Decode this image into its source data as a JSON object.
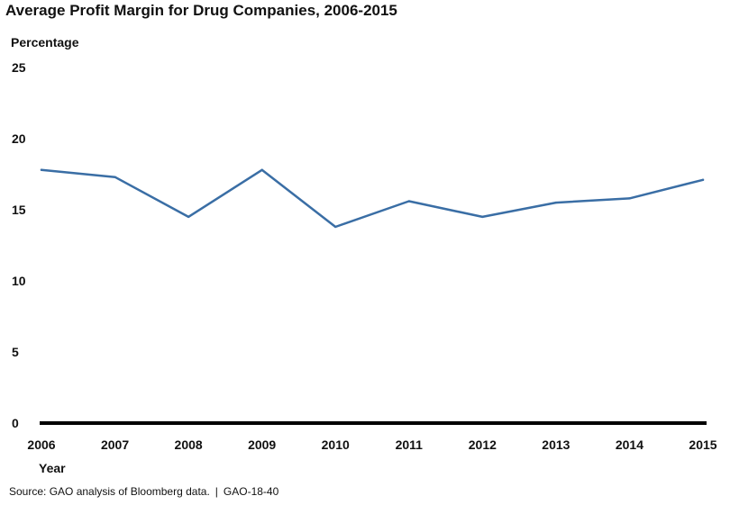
{
  "chart_data": {
    "type": "line",
    "title": "Average Profit Margin for Drug Companies, 2006-2015",
    "ylabel": "Percentage",
    "xlabel": "Year",
    "categories": [
      "2006",
      "2007",
      "2008",
      "2009",
      "2010",
      "2011",
      "2012",
      "2013",
      "2014",
      "2015"
    ],
    "series": [
      {
        "values": [
          17.8,
          17.3,
          14.5,
          17.8,
          13.8,
          15.6,
          14.5,
          15.5,
          15.8,
          17.1
        ]
      }
    ],
    "ylim": [
      0,
      25
    ],
    "yticks": [
      "0",
      "5",
      "10",
      "15",
      "20",
      "25"
    ],
    "grid": false,
    "line_color": "#3a6ea5",
    "baseline_color": "#000000"
  },
  "source": {
    "text": "Source: GAO analysis of Bloomberg data.",
    "separator": "|",
    "report_id": "GAO-18-40"
  }
}
